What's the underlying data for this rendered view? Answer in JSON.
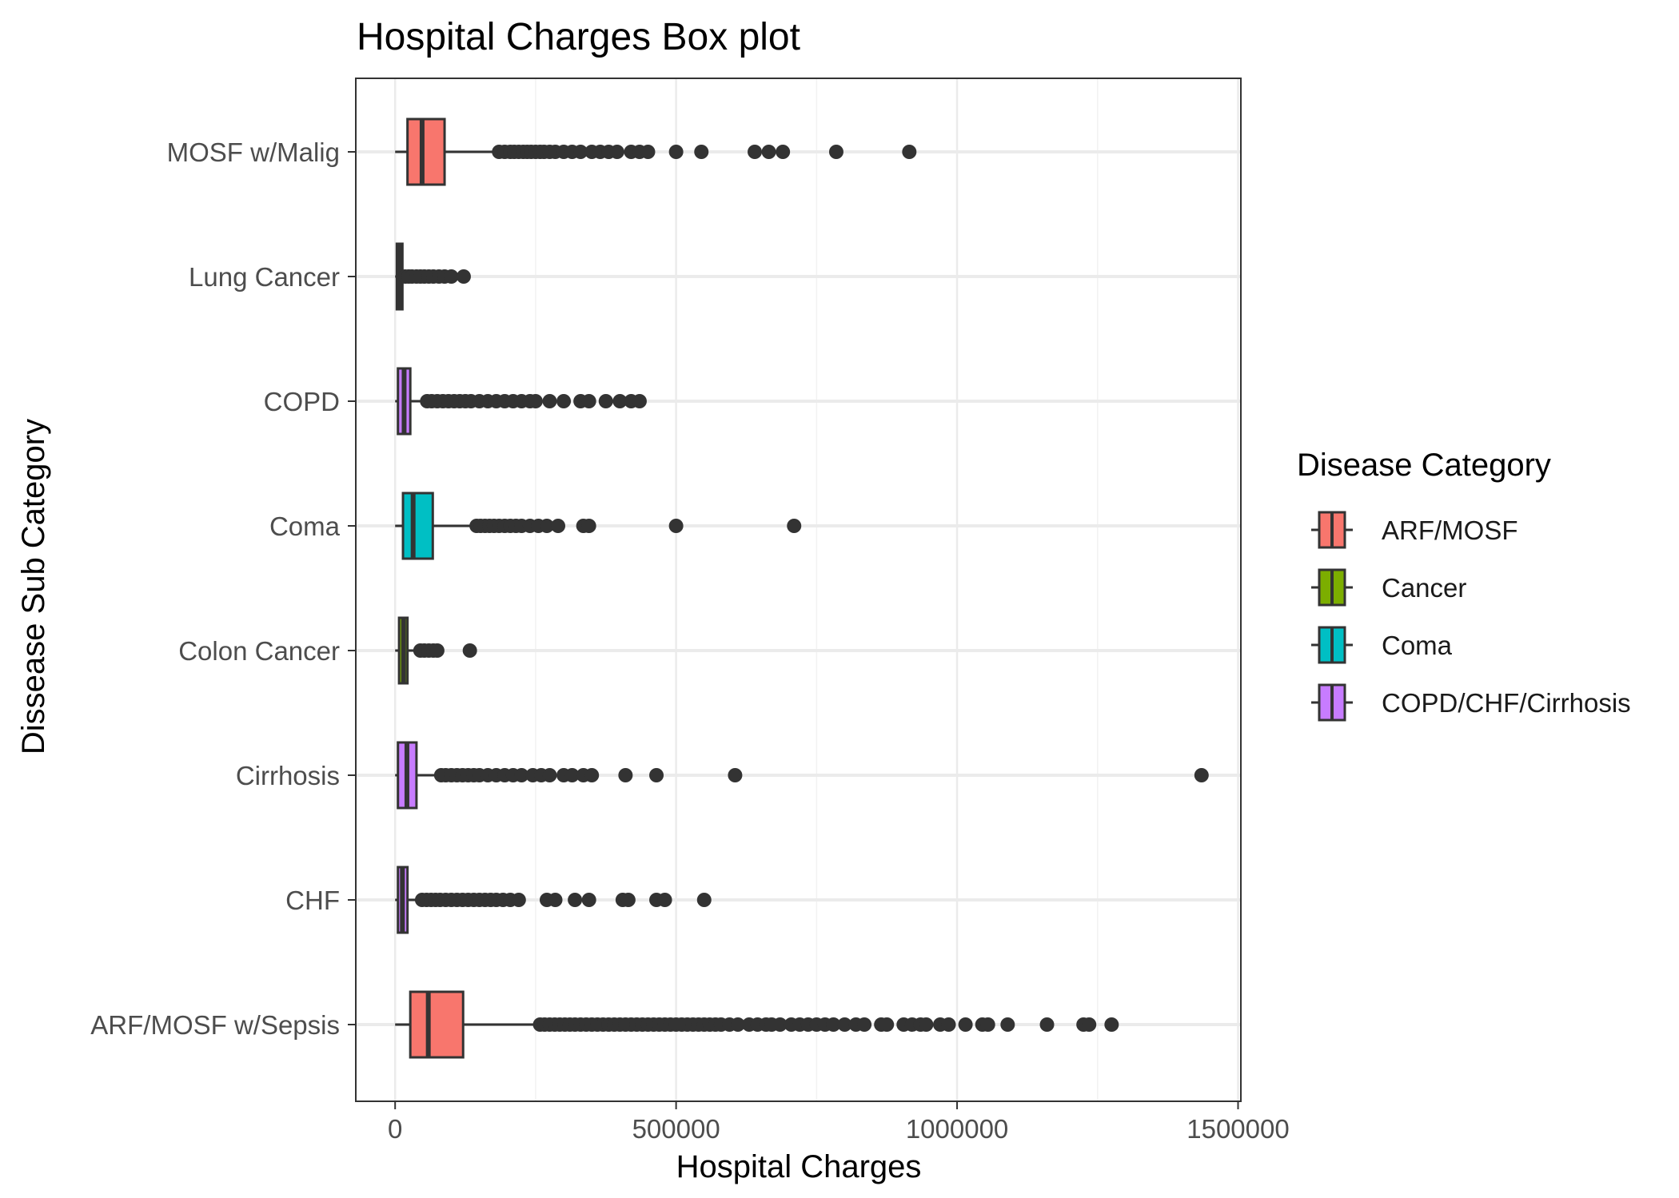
{
  "chart_data": {
    "type": "box",
    "title": "Hospital Charges Box plot",
    "xlabel": "Hospital Charges",
    "ylabel": "Dissease Sub Category",
    "xlim": [
      -70000,
      1505000
    ],
    "x_ticks": [
      0,
      500000,
      1000000,
      1500000
    ],
    "x_tick_labels": [
      "0",
      "500000",
      "1000000",
      "1500000"
    ],
    "grid": true,
    "legend": {
      "title": "Disease Category",
      "position": "right",
      "entries": [
        {
          "label": "ARF/MOSF",
          "color": "#F8766D"
        },
        {
          "label": "Cancer",
          "color": "#7CAE00"
        },
        {
          "label": "Coma",
          "color": "#00BFC4"
        },
        {
          "label": "COPD/CHF/Cirrhosis",
          "color": "#C77CFF"
        }
      ]
    },
    "categories": [
      "MOSF w/Malig",
      "Lung Cancer",
      "COPD",
      "Coma",
      "Colon Cancer",
      "Cirrhosis",
      "CHF",
      "ARF/MOSF w/Sepsis"
    ],
    "boxes": [
      {
        "category": "MOSF w/Malig",
        "group": "ARF/MOSF",
        "color": "#F8766D",
        "whisker_low": 0,
        "q1": 22000,
        "median": 48000,
        "q3": 88000,
        "whisker_high": 185000,
        "outliers": [
          185000,
          195000,
          205000,
          212000,
          220000,
          228000,
          235000,
          242000,
          250000,
          258000,
          265000,
          275000,
          285000,
          300000,
          315000,
          330000,
          350000,
          365000,
          380000,
          395000,
          420000,
          435000,
          450000,
          500000,
          545000,
          640000,
          665000,
          690000,
          785000,
          915000
        ]
      },
      {
        "category": "Lung Cancer",
        "group": "Cancer",
        "color": "#7CAE00",
        "whisker_low": 0,
        "q1": 3000,
        "median": 7000,
        "q3": 13000,
        "whisker_high": 15000,
        "outliers": [
          18000,
          24000,
          30000,
          38000,
          45000,
          52000,
          60000,
          68000,
          78000,
          88000,
          100000,
          122000
        ]
      },
      {
        "category": "COPD",
        "group": "COPD/CHF/Cirrhosis",
        "color": "#C77CFF",
        "whisker_low": 0,
        "q1": 5000,
        "median": 16000,
        "q3": 27000,
        "whisker_high": 52000,
        "outliers": [
          57000,
          65000,
          75000,
          85000,
          95000,
          105000,
          115000,
          125000,
          135000,
          150000,
          165000,
          180000,
          195000,
          210000,
          225000,
          240000,
          250000,
          275000,
          300000,
          330000,
          345000,
          375000,
          400000,
          420000,
          435000
        ]
      },
      {
        "category": "Coma",
        "group": "Coma",
        "color": "#00BFC4",
        "whisker_low": 0,
        "q1": 14000,
        "median": 32000,
        "q3": 67000,
        "whisker_high": 140000,
        "outliers": [
          145000,
          152000,
          160000,
          168000,
          176000,
          185000,
          195000,
          205000,
          215000,
          225000,
          240000,
          255000,
          270000,
          290000,
          335000,
          345000,
          500000,
          710000
        ]
      },
      {
        "category": "Colon Cancer",
        "group": "Cancer",
        "color": "#7CAE00",
        "whisker_low": 0,
        "q1": 7000,
        "median": 15000,
        "q3": 22000,
        "whisker_high": 40000,
        "outliers": [
          45000,
          52000,
          60000,
          68000,
          75000,
          133000
        ]
      },
      {
        "category": "Cirrhosis",
        "group": "COPD/CHF/Cirrhosis",
        "color": "#C77CFF",
        "whisker_low": 0,
        "q1": 5000,
        "median": 21000,
        "q3": 38000,
        "whisker_high": 80000,
        "outliers": [
          82000,
          90000,
          100000,
          110000,
          120000,
          130000,
          140000,
          150000,
          165000,
          180000,
          195000,
          210000,
          225000,
          245000,
          260000,
          275000,
          300000,
          315000,
          335000,
          350000,
          410000,
          465000,
          605000,
          1435000
        ]
      },
      {
        "category": "CHF",
        "group": "COPD/CHF/Cirrhosis",
        "color": "#C77CFF",
        "whisker_low": 0,
        "q1": 5000,
        "median": 13000,
        "q3": 22000,
        "whisker_high": 42000,
        "outliers": [
          48000,
          56000,
          64000,
          72000,
          80000,
          90000,
          100000,
          110000,
          120000,
          130000,
          140000,
          150000,
          160000,
          170000,
          180000,
          192000,
          205000,
          220000,
          270000,
          285000,
          320000,
          345000,
          405000,
          415000,
          465000,
          480000,
          550000
        ]
      },
      {
        "category": "ARF/MOSF w/Sepsis",
        "group": "ARF/MOSF",
        "color": "#F8766D",
        "whisker_low": 0,
        "q1": 27000,
        "median": 59000,
        "q3": 121000,
        "whisker_high": 255000,
        "outliers": [
          258000,
          266000,
          275000,
          284000,
          293000,
          302000,
          311000,
          320000,
          330000,
          340000,
          350000,
          360000,
          370000,
          380000,
          390000,
          400000,
          410000,
          420000,
          430000,
          440000,
          450000,
          460000,
          470000,
          480000,
          490000,
          500000,
          510000,
          520000,
          530000,
          540000,
          550000,
          560000,
          570000,
          580000,
          595000,
          610000,
          630000,
          645000,
          660000,
          670000,
          685000,
          705000,
          720000,
          735000,
          750000,
          765000,
          780000,
          800000,
          820000,
          835000,
          865000,
          875000,
          905000,
          920000,
          935000,
          945000,
          970000,
          985000,
          1015000,
          1045000,
          1055000,
          1090000,
          1160000,
          1225000,
          1235000,
          1275000
        ]
      }
    ]
  }
}
